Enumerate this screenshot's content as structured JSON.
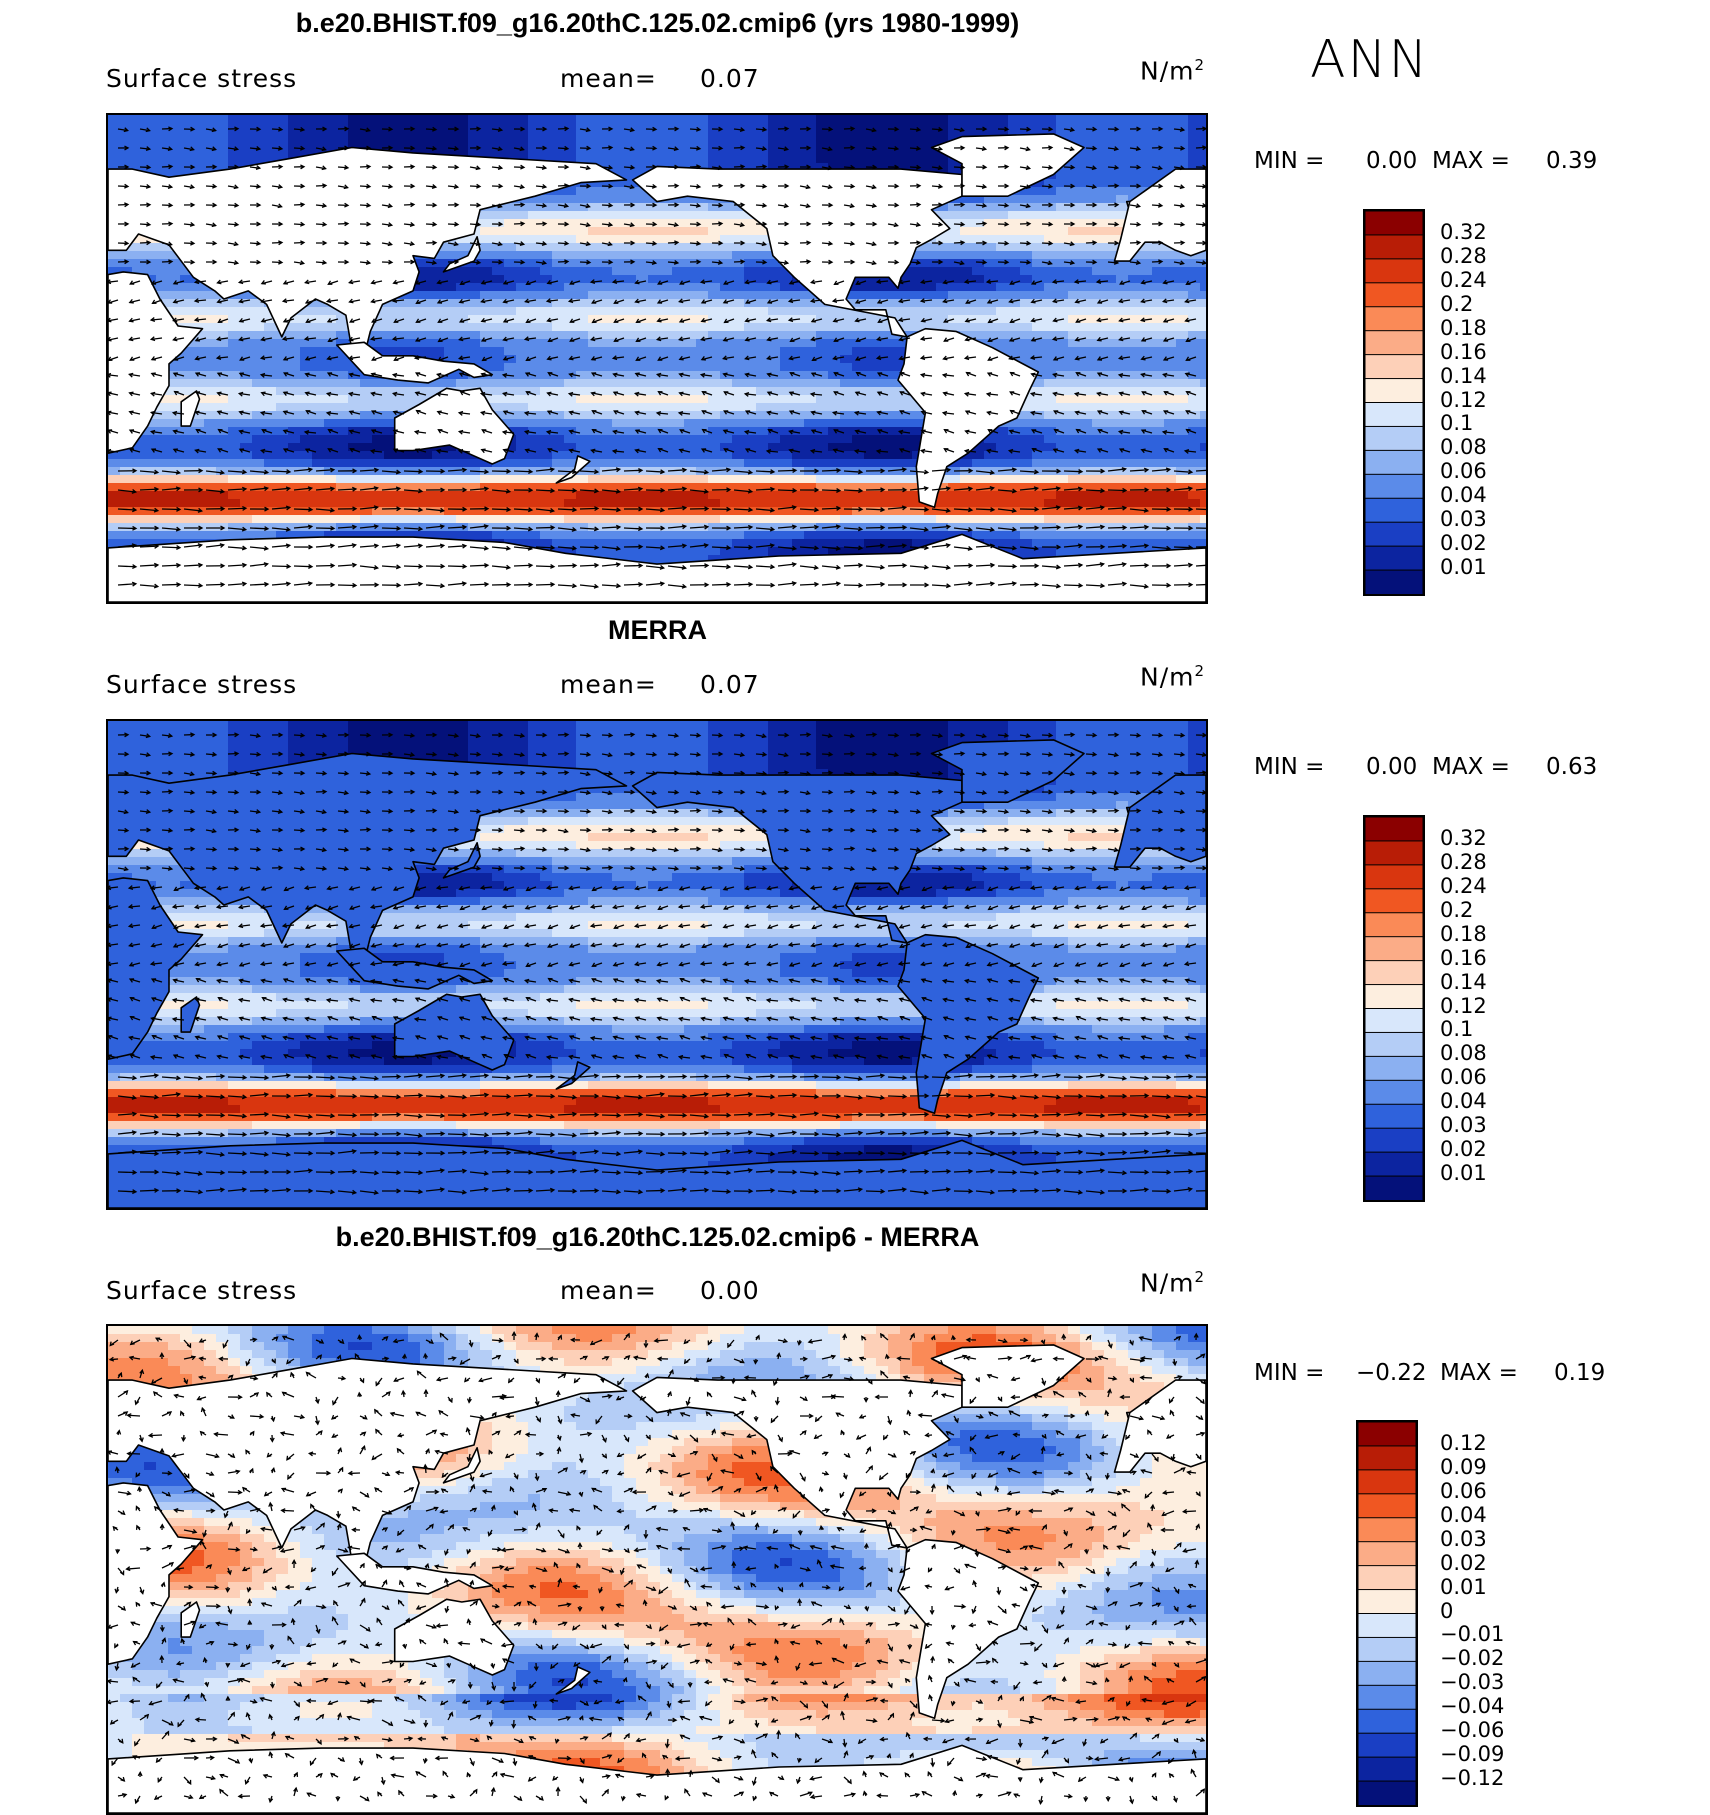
{
  "season": "ANN",
  "panels": [
    {
      "title": "b.e20.BHIST.f09_g16.20thC.125.02.cmip6 (yrs 1980-1999)",
      "variable": "Surface stress",
      "mean_label": "mean=",
      "mean_value": "0.07",
      "units": "N/m",
      "units_sup": "2",
      "min_label": "MIN =",
      "min_value": "0.00",
      "max_label": "MAX =",
      "max_value": "0.39",
      "levels": [
        "0.32",
        "0.28",
        "0.24",
        "0.2",
        "0.18",
        "0.16",
        "0.14",
        "0.12",
        "0.1",
        "0.08",
        "0.06",
        "0.04",
        "0.03",
        "0.02",
        "0.01"
      ],
      "colors": [
        "#8b0000",
        "#b81d06",
        "#d9360f",
        "#f05722",
        "#fa8a57",
        "#fbac87",
        "#fdd0b8",
        "#fdeedf",
        "#d8e7fb",
        "#b4cdf6",
        "#8bb0f1",
        "#5b8be9",
        "#2f62dc",
        "#1a3fc4",
        "#0c24a0",
        "#04117a"
      ]
    },
    {
      "title": "MERRA",
      "variable": "Surface stress",
      "mean_label": "mean=",
      "mean_value": "0.07",
      "units": "N/m",
      "units_sup": "2",
      "min_label": "MIN =",
      "min_value": "0.00",
      "max_label": "MAX =",
      "max_value": "0.63",
      "levels": [
        "0.32",
        "0.28",
        "0.24",
        "0.2",
        "0.18",
        "0.16",
        "0.14",
        "0.12",
        "0.1",
        "0.08",
        "0.06",
        "0.04",
        "0.03",
        "0.02",
        "0.01"
      ],
      "colors": [
        "#8b0000",
        "#b81d06",
        "#d9360f",
        "#f05722",
        "#fa8a57",
        "#fbac87",
        "#fdd0b8",
        "#fdeedf",
        "#d8e7fb",
        "#b4cdf6",
        "#8bb0f1",
        "#5b8be9",
        "#2f62dc",
        "#1a3fc4",
        "#0c24a0",
        "#04117a"
      ]
    },
    {
      "title": "b.e20.BHIST.f09_g16.20thC.125.02.cmip6 - MERRA",
      "variable": "Surface stress",
      "mean_label": "mean=",
      "mean_value": "0.00",
      "units": "N/m",
      "units_sup": "2",
      "min_label": "MIN =",
      "min_value": "−0.22",
      "max_label": "MAX =",
      "max_value": "0.19",
      "levels": [
        "0.12",
        "0.09",
        "0.06",
        "0.04",
        "0.03",
        "0.02",
        "0.01",
        "0",
        "−0.01",
        "−0.02",
        "−0.03",
        "−0.04",
        "−0.06",
        "−0.09",
        "−0.12"
      ],
      "colors": [
        "#8b0000",
        "#b81d06",
        "#d9360f",
        "#f05722",
        "#fa8a57",
        "#fbac87",
        "#fdd0b8",
        "#fdeedf",
        "#d8e7fb",
        "#b4cdf6",
        "#8bb0f1",
        "#5b8be9",
        "#2f62dc",
        "#1a3fc4",
        "#0c24a0",
        "#04117a"
      ]
    }
  ]
}
